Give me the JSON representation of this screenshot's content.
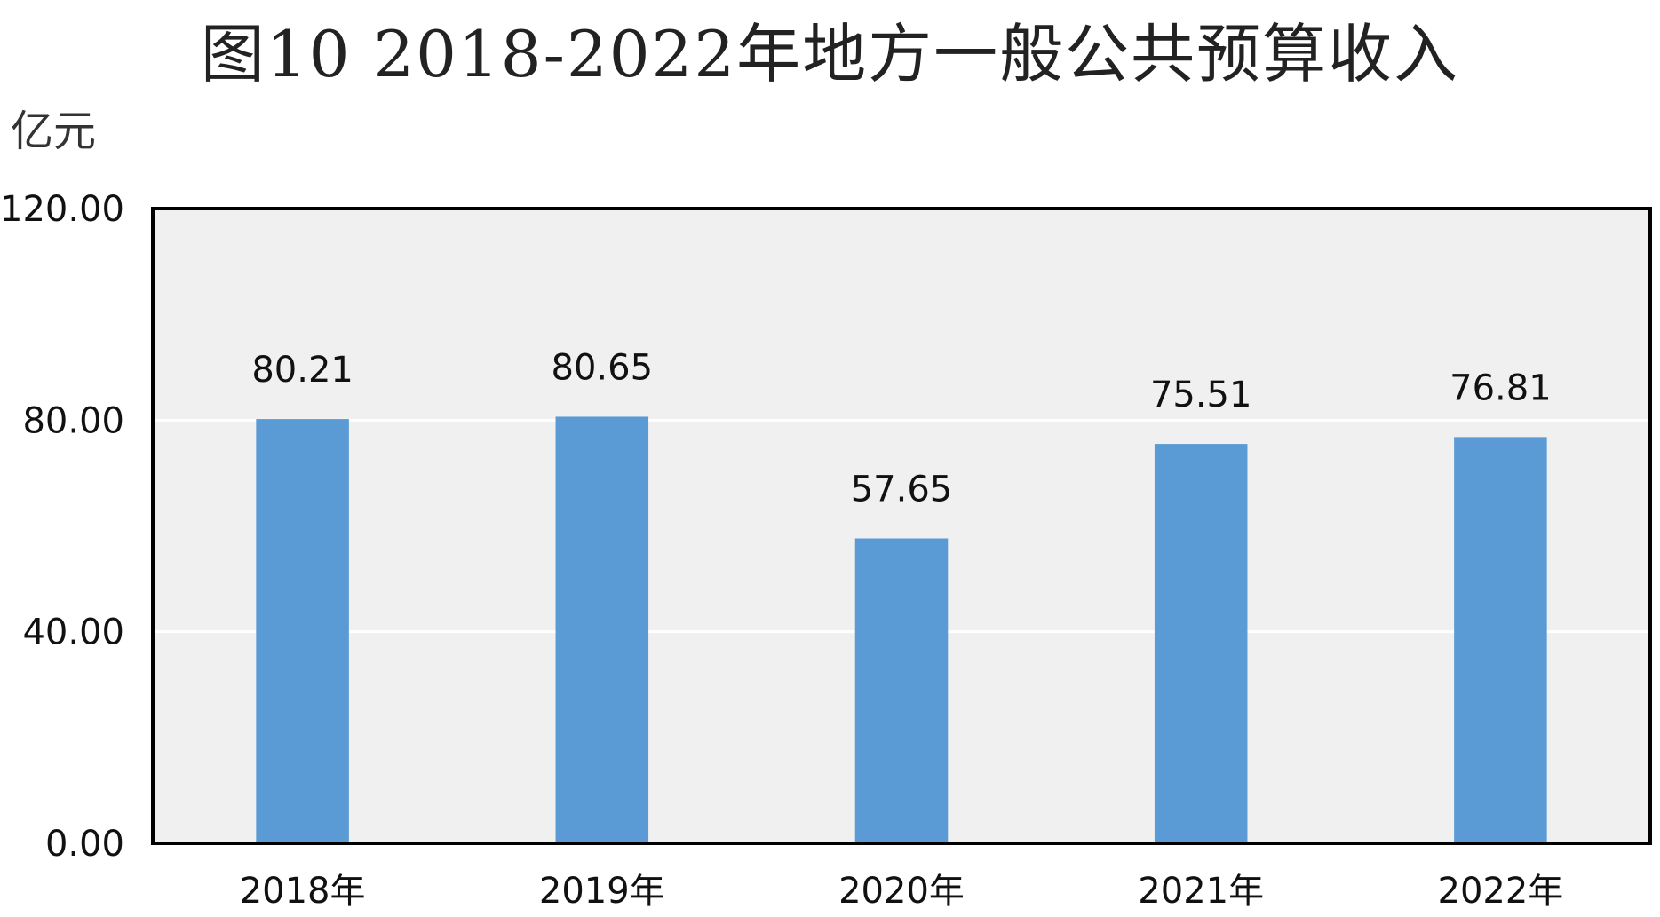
{
  "chart_data": {
    "type": "bar",
    "title": "图10  2018-2022年地方一般公共预算收入",
    "unit": "亿元",
    "categories": [
      "2018年",
      "2019年",
      "2020年",
      "2021年",
      "2022年"
    ],
    "values": [
      80.21,
      80.65,
      57.65,
      75.51,
      76.81
    ],
    "data_labels": [
      "80.21",
      "80.65",
      "57.65",
      "75.51",
      "76.81"
    ],
    "ylim": [
      0,
      120
    ],
    "yticks": [
      0,
      40,
      80,
      120
    ],
    "ytick_labels": [
      "0.00",
      "40.00",
      "80.00",
      "120.00"
    ],
    "grid": true,
    "legend": "none",
    "colors": {
      "bar": "#5b9bd5",
      "plot_background": "#f0f0f0",
      "gridline": "#ffffff",
      "frame": "#000000"
    }
  }
}
